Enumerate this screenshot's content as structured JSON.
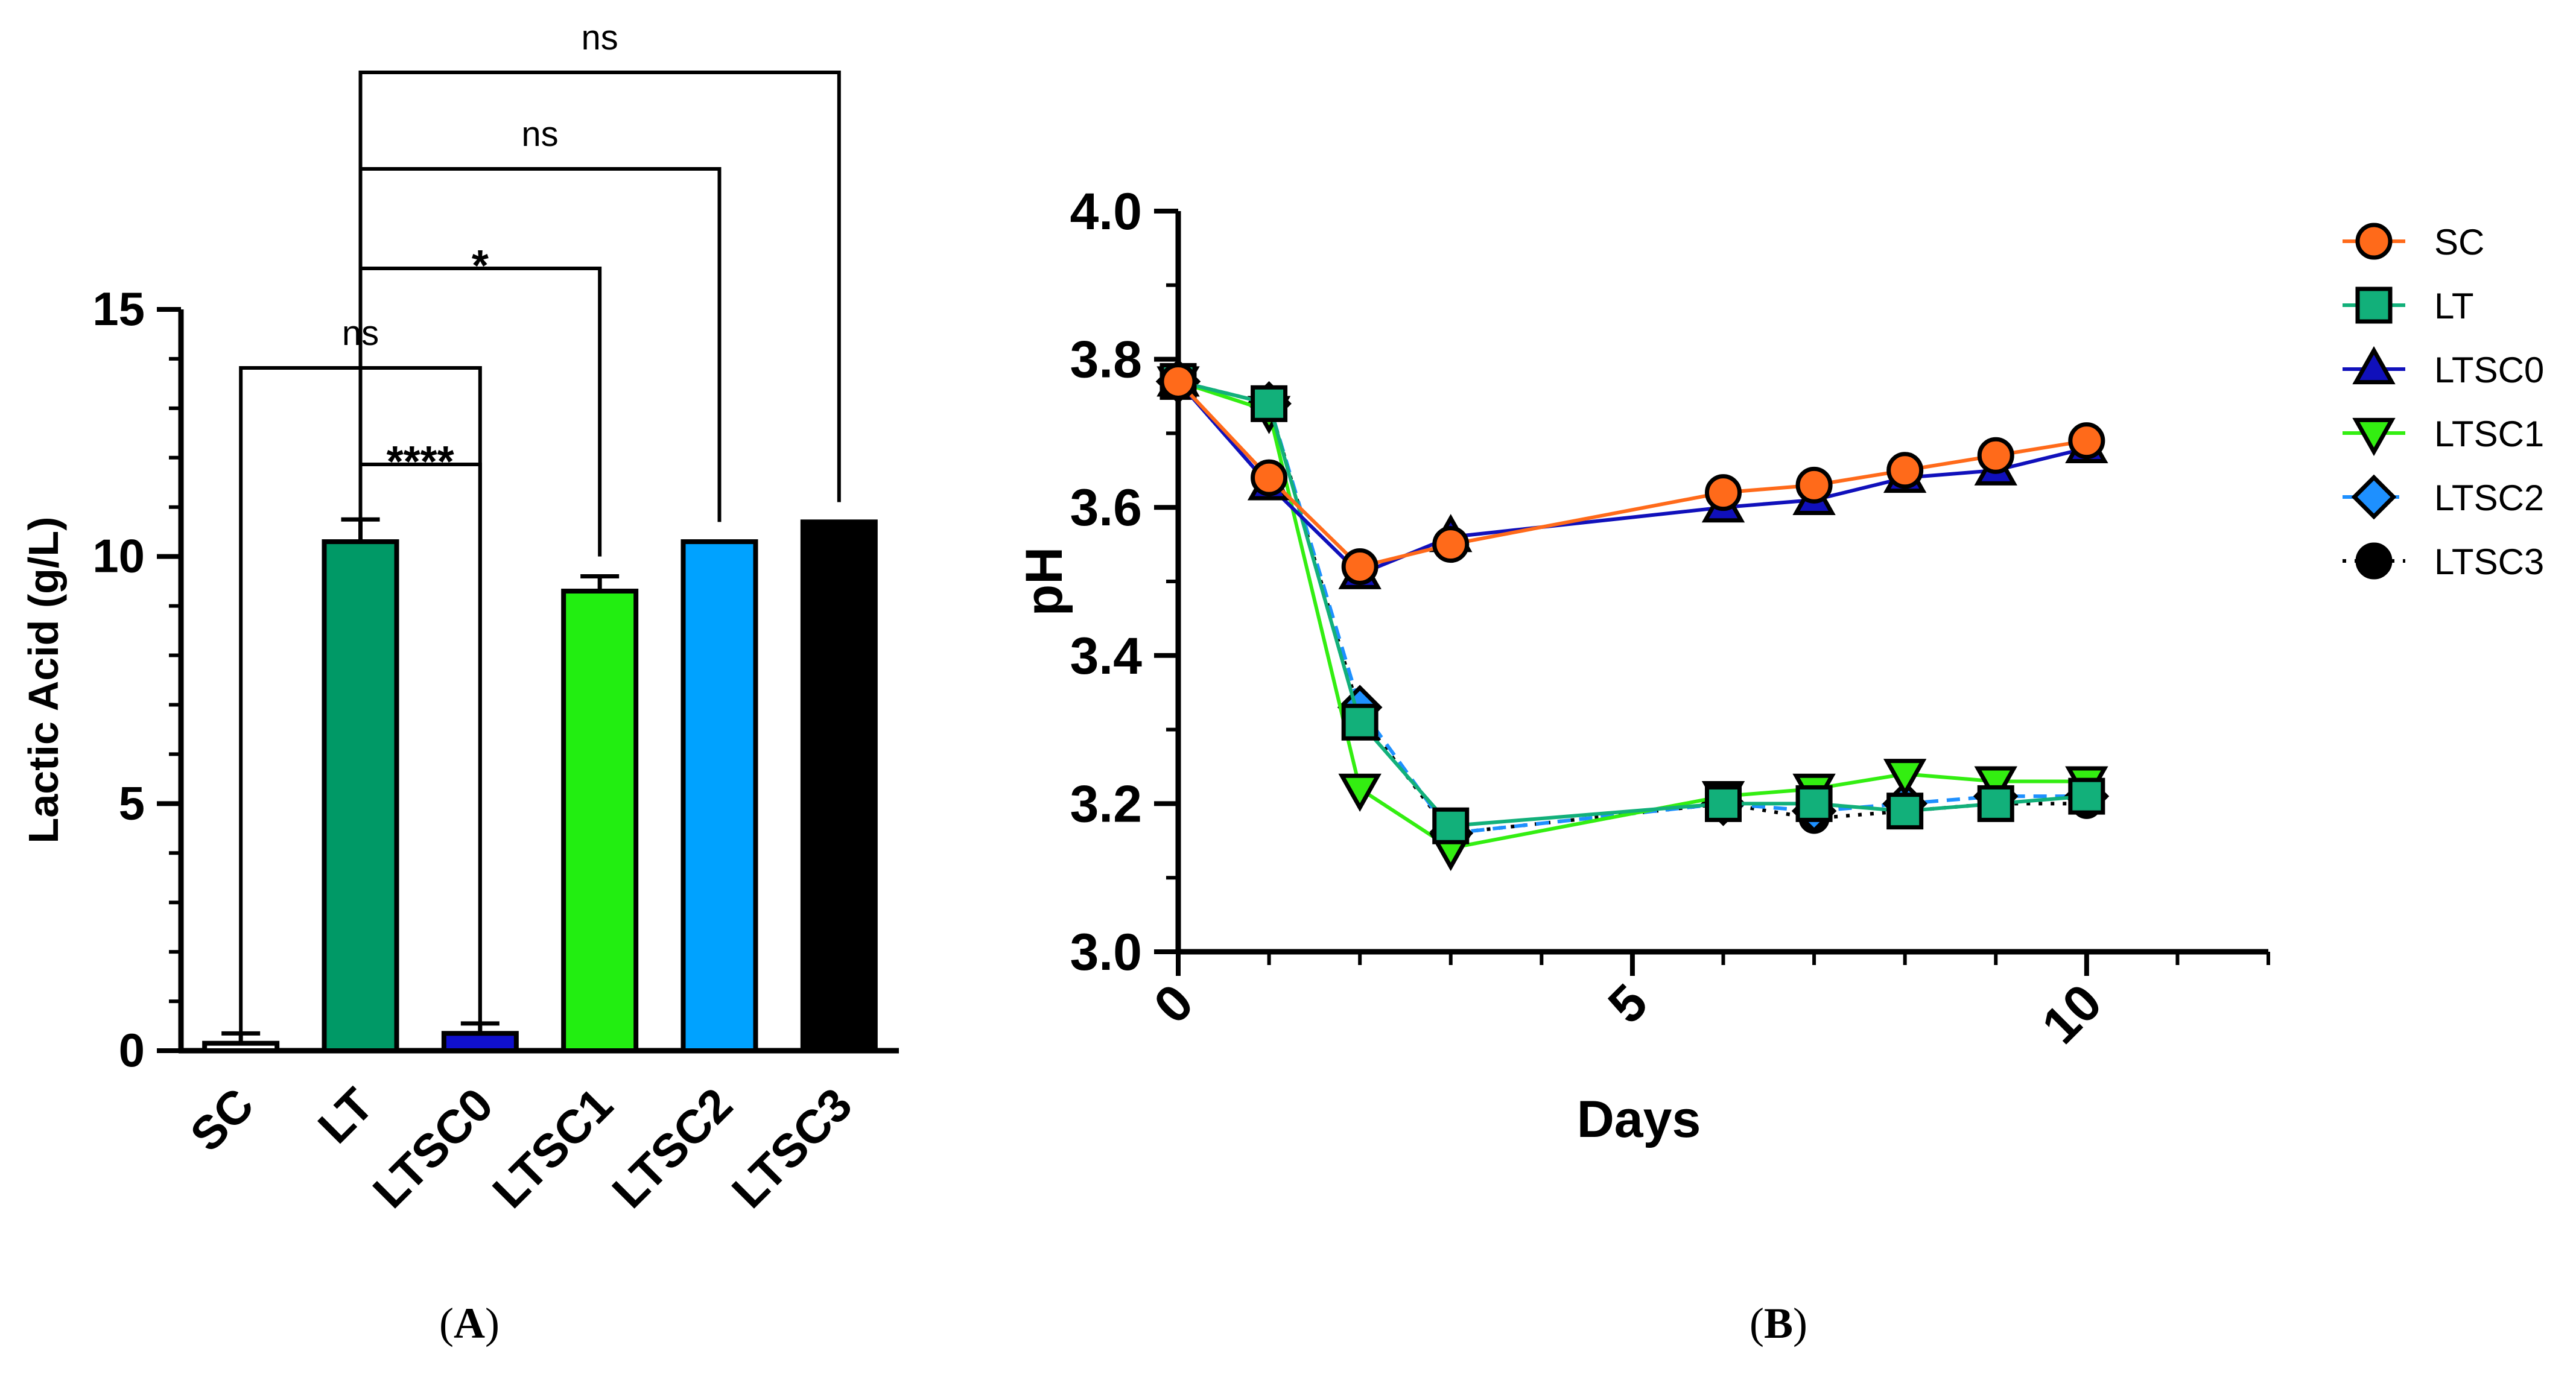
{
  "chart_data": [
    {
      "panel": "A",
      "panel_label": "A",
      "type": "bar",
      "ylabel": "Lactic Acid (g/L)",
      "ylim": [
        0,
        15
      ],
      "yticks": [
        0,
        5,
        10,
        15
      ],
      "categories": [
        "SC",
        "LT",
        "LTSC0",
        "LTSC1",
        "LTSC2",
        "LTSC3"
      ],
      "values": [
        0.15,
        10.3,
        0.35,
        9.3,
        10.3,
        10.7
      ],
      "errors": [
        0.2,
        0.45,
        0.2,
        0.3,
        0.0,
        0.0
      ],
      "colors": [
        "#ffffff",
        "#009966",
        "#1010cc",
        "#22ee11",
        "#00a2ff",
        "#000000"
      ],
      "comparisons": [
        {
          "from": "LT",
          "to": "LTSC3",
          "label": "ns"
        },
        {
          "from": "LT",
          "to": "LTSC2",
          "label": "ns"
        },
        {
          "from": "LT",
          "to": "LTSC1",
          "label": "*"
        },
        {
          "from": "SC",
          "to": "LTSC0",
          "label": "ns"
        },
        {
          "from": "LT",
          "to": "LTSC0",
          "label": "****"
        }
      ]
    },
    {
      "panel": "B",
      "panel_label": "B",
      "type": "line",
      "xlabel": "Days",
      "ylabel": "pH",
      "xlim": [
        0,
        12
      ],
      "ylim": [
        3.0,
        4.0
      ],
      "xticks": [
        0,
        5,
        10
      ],
      "yticks": [
        "3.0",
        "3.2",
        "3.4",
        "3.6",
        "3.8",
        "4.0"
      ],
      "legend_position": "right",
      "series": [
        {
          "name": "LTSC3",
          "marker": "circle",
          "dash": "dot",
          "color": "#000000",
          "line": "#000000",
          "x": [
            0,
            1,
            2,
            3,
            6,
            7,
            8,
            9,
            10
          ],
          "y": [
            3.77,
            3.74,
            3.32,
            3.16,
            3.2,
            3.18,
            3.19,
            3.2,
            3.2
          ]
        },
        {
          "name": "LTSC2",
          "marker": "diamond",
          "dash": "dash",
          "color": "#1e90ff",
          "line": "#1e90ff",
          "x": [
            0,
            1,
            2,
            3,
            6,
            7,
            8,
            9,
            10
          ],
          "y": [
            3.77,
            3.74,
            3.33,
            3.16,
            3.2,
            3.19,
            3.2,
            3.21,
            3.21
          ]
        },
        {
          "name": "LTSC1",
          "marker": "triangle-down",
          "dash": "solid",
          "color": "#33ee11",
          "line": "#33ee11",
          "x": [
            0,
            1,
            2,
            3,
            6,
            7,
            8,
            9,
            10
          ],
          "y": [
            3.77,
            3.73,
            3.22,
            3.14,
            3.21,
            3.22,
            3.24,
            3.23,
            3.23
          ]
        },
        {
          "name": "LT",
          "marker": "square",
          "dash": "solid",
          "color": "#12b07a",
          "line": "#12b07a",
          "x": [
            0,
            1,
            2,
            3,
            6,
            7,
            8,
            9,
            10
          ],
          "y": [
            3.77,
            3.74,
            3.31,
            3.17,
            3.2,
            3.2,
            3.19,
            3.2,
            3.21
          ]
        },
        {
          "name": "LTSC0",
          "marker": "triangle-up",
          "dash": "solid",
          "color": "#1010bb",
          "line": "#1010bb",
          "x": [
            0,
            1,
            2,
            3,
            6,
            7,
            8,
            9,
            10
          ],
          "y": [
            3.77,
            3.63,
            3.51,
            3.56,
            3.6,
            3.61,
            3.64,
            3.65,
            3.68
          ]
        },
        {
          "name": "SC",
          "marker": "circle",
          "dash": "solid",
          "color": "#ff6a1a",
          "line": "#ff6a1a",
          "x": [
            0,
            1,
            2,
            3,
            6,
            7,
            8,
            9,
            10
          ],
          "y": [
            3.77,
            3.64,
            3.52,
            3.55,
            3.62,
            3.63,
            3.65,
            3.67,
            3.69
          ]
        }
      ],
      "legend_order": [
        "SC",
        "LT",
        "LTSC0",
        "LTSC1",
        "LTSC2",
        "LTSC3"
      ]
    }
  ]
}
